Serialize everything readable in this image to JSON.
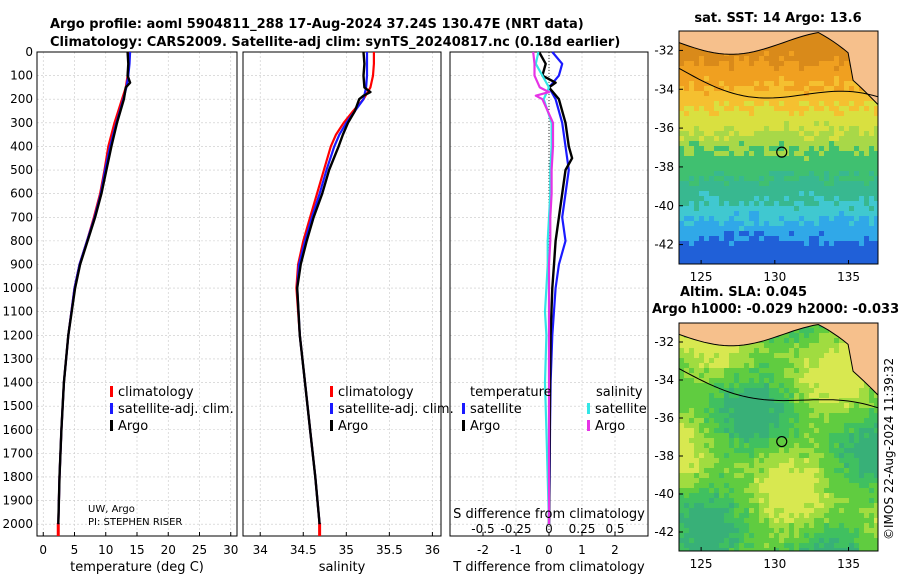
{
  "header": {
    "line1": "Argo profile: aoml 5904811_288 17-Aug-2024 37.24S 130.47E (NRT data)",
    "line2": "Climatology: CARS2009. Satellite-adj clim: synTS_20240817.nc (0.18d earlier)"
  },
  "colors": {
    "climatology": "#ff0000",
    "satellite": "#1a1aff",
    "argo": "#000000",
    "satellite_s": "#33e6e6",
    "salinity_s": "#e633e6"
  },
  "depth_ticks": [
    "0",
    "100",
    "200",
    "300",
    "400",
    "500",
    "600",
    "700",
    "800",
    "900",
    "1000",
    "1100",
    "1200",
    "1300",
    "1400",
    "1500",
    "1600",
    "1700",
    "1800",
    "1900",
    "2000"
  ],
  "legend": {
    "climatology": "climatology",
    "satellite": "satellite-adj. clim.",
    "argo": "Argo"
  },
  "diff_legend": {
    "temperature": "temperature",
    "salinity": "salinity",
    "satellite": "satellite",
    "argo": "Argo"
  },
  "credit": {
    "line1": "UW, Argo",
    "line2": "PI: STEPHEN RISER"
  },
  "timestamp": "©IMOS 22-Aug-2024 11:39:32",
  "map_top": {
    "title": "sat. SST: 14 Argo: 13.6"
  },
  "map_bottom": {
    "title1": "Altim. SLA: 0.045",
    "title2": "Argo h1000: -0.029 h2000: -0.033"
  },
  "map_lat_ticks": [
    "-32",
    "-34",
    "-36",
    "-38",
    "-40",
    "-42"
  ],
  "map_lon_ticks": [
    "125",
    "130",
    "135"
  ],
  "chart_data": [
    {
      "type": "line",
      "xlabel": "temperature (deg C)",
      "ylabel": "",
      "xlim": [
        -1,
        31
      ],
      "ylim": [
        2050,
        0
      ],
      "x_ticks": [
        "0",
        "5",
        "10",
        "15",
        "20",
        "25",
        "30"
      ],
      "x_tick_values": [
        0,
        5,
        10,
        15,
        20,
        25,
        30
      ],
      "series": [
        {
          "name": "climatology",
          "depth": [
            0,
            50,
            100,
            150,
            200,
            300,
            400,
            500,
            600,
            700,
            800,
            900,
            1000,
            1200,
            1400,
            1600,
            1800,
            2000
          ],
          "values": [
            13.8,
            13.7,
            13.5,
            13.2,
            12.6,
            11.4,
            10.4,
            9.8,
            9.1,
            8.1,
            7.0,
            5.8,
            5.0,
            4.0,
            3.3,
            2.9,
            2.6,
            2.4
          ]
        },
        {
          "name": "satellite-adj. clim.",
          "depth": [
            0,
            50,
            100,
            150,
            200,
            300,
            400,
            500,
            600,
            700,
            800,
            900,
            1000,
            1200,
            1400,
            1600,
            1800,
            2000
          ],
          "values": [
            13.9,
            13.8,
            13.6,
            13.3,
            12.8,
            11.7,
            10.7,
            9.9,
            9.2,
            8.2,
            7.0,
            5.8,
            5.0,
            4.0,
            3.3,
            2.9,
            2.6,
            2.4
          ]
        },
        {
          "name": "Argo",
          "depth": [
            0,
            50,
            100,
            130,
            150,
            200,
            300,
            400,
            500,
            600,
            700,
            800,
            900,
            1000,
            1200,
            1400,
            1600,
            1800,
            2000
          ],
          "values": [
            13.5,
            13.6,
            13.5,
            13.9,
            13.2,
            12.9,
            11.8,
            10.9,
            10.1,
            9.3,
            8.3,
            7.1,
            5.9,
            5.1,
            4.0,
            3.3,
            2.9,
            2.6,
            2.4
          ]
        }
      ]
    },
    {
      "type": "line",
      "xlabel": "salinity",
      "ylabel": "",
      "xlim": [
        33.8,
        36.1
      ],
      "ylim": [
        2050,
        0
      ],
      "x_ticks": [
        "34",
        "34.5",
        "35",
        "35.5",
        "36"
      ],
      "x_tick_values": [
        34,
        34.5,
        35,
        35.5,
        36
      ],
      "series": [
        {
          "name": "climatology",
          "depth": [
            0,
            50,
            100,
            150,
            200,
            250,
            300,
            350,
            400,
            500,
            600,
            700,
            800,
            900,
            1000,
            1200,
            1400,
            1600,
            1800,
            2000
          ],
          "values": [
            35.32,
            35.32,
            35.31,
            35.28,
            35.2,
            35.08,
            34.97,
            34.88,
            34.82,
            34.74,
            34.66,
            34.58,
            34.5,
            34.44,
            34.42,
            34.46,
            34.52,
            34.58,
            34.64,
            34.69
          ]
        },
        {
          "name": "satellite-adj. clim.",
          "depth": [
            0,
            50,
            100,
            150,
            200,
            250,
            300,
            350,
            400,
            500,
            600,
            700,
            800,
            900,
            1000,
            1200,
            1400,
            1600,
            1800,
            2000
          ],
          "values": [
            35.24,
            35.24,
            35.24,
            35.23,
            35.2,
            35.1,
            35.0,
            34.92,
            34.86,
            34.77,
            34.69,
            34.6,
            34.52,
            34.45,
            34.43,
            34.46,
            34.52,
            34.58,
            34.64,
            34.69
          ]
        },
        {
          "name": "Argo",
          "depth": [
            0,
            50,
            100,
            150,
            170,
            185,
            200,
            250,
            300,
            350,
            400,
            500,
            600,
            700,
            800,
            900,
            1000,
            1200,
            1400,
            1600,
            1800,
            2000
          ],
          "values": [
            35.2,
            35.21,
            35.2,
            35.21,
            35.28,
            35.2,
            35.15,
            35.1,
            35.02,
            34.96,
            34.91,
            34.8,
            34.72,
            34.62,
            34.54,
            34.47,
            34.43,
            34.46,
            34.52,
            34.58,
            34.64,
            34.69
          ]
        }
      ]
    },
    {
      "type": "line",
      "xlabel": "T difference from climatology",
      "x2label": "S difference from climatology",
      "ylabel": "",
      "xlim": [
        -3,
        3
      ],
      "x2lim": [
        -0.75,
        0.75
      ],
      "ylim": [
        2050,
        0
      ],
      "x_ticks": [
        "-2",
        "-1",
        "0",
        "1",
        "2"
      ],
      "x_tick_values": [
        -2,
        -1,
        0,
        1,
        2
      ],
      "x2_ticks": [
        "-0.5",
        "-0.25",
        "0",
        "0.25",
        "0.5"
      ],
      "x2_tick_values": [
        -0.5,
        -0.25,
        0,
        0.25,
        0.5
      ],
      "series": [
        {
          "name": "temperature satellite",
          "axis": "T",
          "depth": [
            0,
            50,
            100,
            150,
            200,
            300,
            400,
            500,
            600,
            700,
            800,
            900,
            1000,
            1200,
            1400,
            1600,
            1800,
            2000
          ],
          "values": [
            0.1,
            0.4,
            0.3,
            0.0,
            0.2,
            0.4,
            0.5,
            0.6,
            0.5,
            0.4,
            0.5,
            0.3,
            0.2,
            0.1,
            0.05,
            0.03,
            0.02,
            0.0
          ]
        },
        {
          "name": "temperature Argo",
          "axis": "T",
          "depth": [
            0,
            50,
            100,
            130,
            150,
            200,
            300,
            400,
            450,
            500,
            600,
            700,
            800,
            900,
            1000,
            1200,
            1400,
            1600,
            1800,
            2000
          ],
          "values": [
            -0.3,
            -0.1,
            -0.2,
            0.2,
            0.0,
            0.3,
            0.5,
            0.6,
            0.7,
            0.5,
            0.4,
            0.3,
            0.2,
            0.15,
            0.1,
            0.05,
            0.03,
            0.02,
            0.01,
            0.0
          ]
        },
        {
          "name": "salinity satellite",
          "axis": "S",
          "depth": [
            0,
            50,
            100,
            150,
            200,
            300,
            400,
            500,
            600,
            700,
            800,
            900,
            1000,
            1100,
            1200,
            1400,
            1600,
            1800,
            2000
          ],
          "values": [
            -0.08,
            -0.1,
            -0.05,
            0.0,
            -0.04,
            0.02,
            0.02,
            0.01,
            0.01,
            0.0,
            -0.01,
            -0.01,
            -0.02,
            -0.03,
            -0.02,
            -0.03,
            -0.02,
            -0.01,
            0.0
          ]
        },
        {
          "name": "salinity Argo",
          "axis": "S",
          "depth": [
            0,
            50,
            100,
            150,
            170,
            185,
            200,
            300,
            400,
            500,
            600,
            700,
            800,
            900,
            1000,
            1200,
            1400,
            1600,
            1800,
            2000
          ],
          "values": [
            -0.12,
            -0.11,
            -0.11,
            -0.07,
            0.0,
            -0.1,
            -0.05,
            0.03,
            0.03,
            0.02,
            0.02,
            0.01,
            0.01,
            0.0,
            0.0,
            0.0,
            0.0,
            0.0,
            0.0,
            0.0
          ]
        }
      ]
    }
  ]
}
